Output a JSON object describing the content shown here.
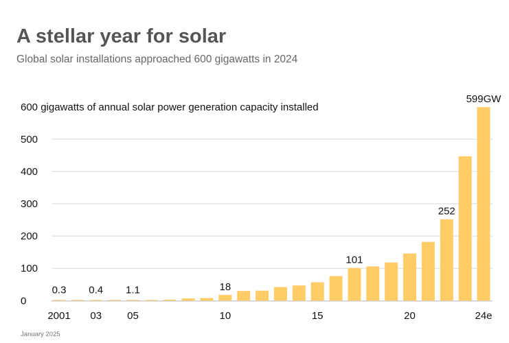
{
  "header": {
    "title": "A stellar year for solar",
    "subtitle": "Global solar installations approached 600 gigawatts in 2024"
  },
  "footer": {
    "date": "January 2025"
  },
  "chart_data": {
    "type": "bar",
    "title": "600 gigawatts of annual solar power generation capacity installed",
    "categories": [
      "2001",
      "2002",
      "2003",
      "2004",
      "2005",
      "2006",
      "2007",
      "2008",
      "2009",
      "2010",
      "2011",
      "2012",
      "2013",
      "2014",
      "2015",
      "2016",
      "2017",
      "2018",
      "2019",
      "2020",
      "2021",
      "2022",
      "2023",
      "2024e"
    ],
    "values": [
      0.3,
      0.3,
      0.4,
      0.9,
      1.1,
      1.5,
      3,
      7,
      8,
      18,
      30,
      31,
      42,
      47,
      57,
      76,
      101,
      106,
      118,
      146,
      182,
      252,
      447,
      599
    ],
    "x_tick_labels": [
      {
        "category": "2001",
        "label": "2001"
      },
      {
        "category": "2003",
        "label": "03"
      },
      {
        "category": "2005",
        "label": "05"
      },
      {
        "category": "2010",
        "label": "10"
      },
      {
        "category": "2015",
        "label": "15"
      },
      {
        "category": "2020",
        "label": "20"
      },
      {
        "category": "2024e",
        "label": "24e"
      }
    ],
    "data_labels": [
      {
        "category": "2001",
        "label": "0.3"
      },
      {
        "category": "2003",
        "label": "0.4"
      },
      {
        "category": "2005",
        "label": "1.1"
      },
      {
        "category": "2010",
        "label": "18"
      },
      {
        "category": "2017",
        "label": "101"
      },
      {
        "category": "2022",
        "label": "252"
      },
      {
        "category": "2024e",
        "label": "599GW"
      }
    ],
    "y_ticks": [
      0,
      100,
      200,
      300,
      400,
      500
    ],
    "ylim": [
      0,
      600
    ],
    "xlabel": "",
    "ylabel": "",
    "grid": true,
    "legend": "none",
    "colors": {
      "bar": "#FFCC66",
      "grid": "#E4E4E4"
    }
  }
}
